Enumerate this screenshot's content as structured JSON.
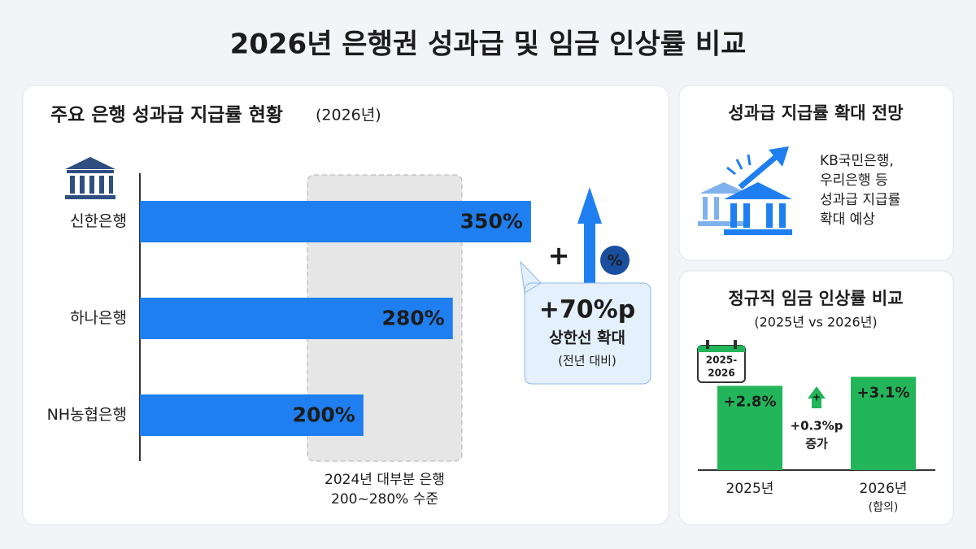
{
  "title": "2026년 은행권 성과급 및 임금 인상률 비교",
  "chart_data": [
    {
      "type": "barh",
      "title": "주요 은행 성과급 지급률 현황",
      "title_note": "(2026년)",
      "categories": [
        "신한은행",
        "하나은행",
        "NH농협은행"
      ],
      "values": [
        350,
        280,
        200
      ],
      "value_labels": [
        "350%",
        "280%",
        "200%"
      ],
      "color": "#1f7ff0",
      "band_labels": [
        "2024년 대부분 은행",
        "200~280% 수준"
      ],
      "callout": {
        "plus": "+",
        "badge": "%",
        "value": "+70%p",
        "label": "상한선 확대",
        "note": "(전년 대비)"
      }
    },
    {
      "type": "bar",
      "title": "정규직 임금 인상률 비교",
      "subtitle": "(2025년 vs 2026년)",
      "categories": [
        "2025년",
        "2026년"
      ],
      "category_notes": [
        null,
        "(합의)"
      ],
      "values": [
        2.8,
        3.1
      ],
      "value_labels": [
        "+2.8%",
        "+3.1%"
      ],
      "color": "#22b559",
      "calendar_labels": [
        "2025-",
        "2026"
      ],
      "change": {
        "plus": "+",
        "value": "+0.3%p",
        "label": "증가"
      }
    }
  ],
  "outlook": {
    "title": "성과급 지급률 확대 전망",
    "lines": [
      "KB국민은행,",
      "우리은행 등",
      "성과급 지급률",
      "확대 예상"
    ]
  }
}
